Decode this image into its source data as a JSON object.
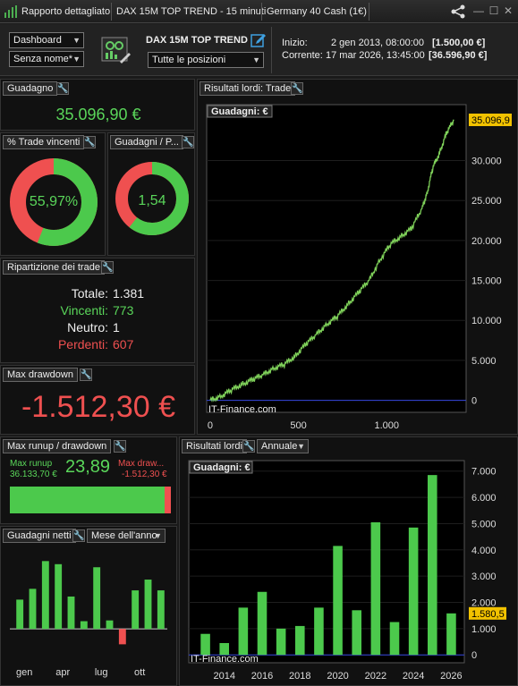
{
  "titlebar": {
    "title": "Rapporto dettagliato",
    "system": "DAX 15M TOP TREND - 15 minuti",
    "instrument": "Germany 40 Cash (1€)"
  },
  "header": {
    "select_view": "Dashboard",
    "select_name": "Senza nome*",
    "system_title": "DAX 15M TOP TREND",
    "select_positions": "Tutte le posizioni",
    "start_label": "Inizio:",
    "start_date": "2 gen 2013, 08:00:00",
    "start_value": "[1.500,00 €]",
    "current_label": "Corrente:",
    "current_date": "17 mar 2026, 13:45:00",
    "current_value": "[36.596,90 €]"
  },
  "gain": {
    "title": "Guadagno",
    "value": "35.096,90 €"
  },
  "win_pct": {
    "title": "% Trade vincenti",
    "value": "55,97%",
    "fraction": 0.5597
  },
  "profit_factor": {
    "title": "Guadagni / P...",
    "value": "1,54",
    "fraction": 0.606
  },
  "breakdown": {
    "title": "Ripartizione dei trade",
    "total_label": "Totale:",
    "total": "1.381",
    "win_label": "Vincenti:",
    "win": "773",
    "neutral_label": "Neutro:",
    "neutral": "1",
    "loss_label": "Perdenti:",
    "loss": "607"
  },
  "drawdown": {
    "title": "Max drawdown",
    "value": "-1.512,30 €"
  },
  "runup": {
    "title": "Max runup / drawdown",
    "runup_label": "Max runup",
    "runup_value": "36.133,70 €",
    "ratio": "23,89",
    "dd_label": "Max draw...",
    "dd_value": "-1.512,30 €",
    "fraction": 0.96
  },
  "net_gains": {
    "title": "Guadagni netti",
    "mode": "Mese dell'anno",
    "labels": [
      "gen",
      "apr",
      "lug",
      "ott"
    ],
    "chart_data": {
      "type": "bar",
      "values": [
        1.9,
        2.6,
        4.4,
        4.2,
        2.1,
        0.5,
        4.0,
        0.55,
        -1.0,
        2.5,
        3.2,
        2.5
      ],
      "ylim": [
        -1.5,
        5
      ]
    }
  },
  "equity": {
    "title": "Risultati lordi: Trade",
    "legend": "Guadagni: €",
    "watermark": "IT-Finance.com",
    "last_label": "35.096,9",
    "chart_data": {
      "type": "line",
      "x": [
        0,
        60,
        120,
        180,
        240,
        300,
        360,
        420,
        480,
        540,
        600,
        660,
        720,
        780,
        840,
        900,
        960,
        1020,
        1080,
        1140,
        1200,
        1230,
        1260,
        1300,
        1340,
        1381
      ],
      "y": [
        0,
        500,
        1300,
        2000,
        2600,
        3200,
        4000,
        4500,
        5500,
        7000,
        8200,
        9500,
        10500,
        12000,
        13500,
        15000,
        17500,
        19500,
        20500,
        21500,
        24000,
        26000,
        29000,
        31000,
        33500,
        35096.9
      ],
      "xticks": [
        "0",
        "500",
        "1.000"
      ],
      "xtick_values": [
        0,
        500,
        1000
      ],
      "yticks": [
        "0",
        "5.000",
        "10.000",
        "15.000",
        "20.000",
        "25.000",
        "30.000"
      ],
      "ytick_values": [
        0,
        5000,
        10000,
        15000,
        20000,
        25000,
        30000
      ],
      "xlim": [
        -20,
        1450
      ],
      "ylim": [
        -1500,
        37000
      ]
    }
  },
  "annual": {
    "title": "Risultati lordi",
    "mode": "Annuale",
    "legend": "Guadagni: €",
    "watermark": "IT-Finance.com",
    "last_label": "1.580,5",
    "chart_data": {
      "type": "bar",
      "categories": [
        "2013",
        "2014",
        "2015",
        "2016",
        "2017",
        "2018",
        "2019",
        "2020",
        "2021",
        "2022",
        "2023",
        "2024",
        "2025",
        "2026"
      ],
      "values": [
        800,
        450,
        1800,
        2400,
        1000,
        1100,
        1800,
        4150,
        1700,
        5050,
        1250,
        4850,
        6850,
        1580.5
      ],
      "xticks": [
        "2014",
        "2016",
        "2018",
        "2020",
        "2022",
        "2024",
        "2026"
      ],
      "yticks": [
        "0",
        "1.000",
        "2.000",
        "3.000",
        "4.000",
        "5.000",
        "6.000",
        "7.000"
      ],
      "ytick_values": [
        0,
        1000,
        2000,
        3000,
        4000,
        5000,
        6000,
        7000
      ],
      "ylim": [
        -300,
        7400
      ]
    }
  }
}
